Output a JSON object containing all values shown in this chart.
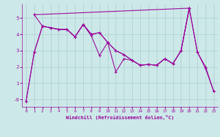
{
  "xlabel": "Windchill (Refroidissement éolien,°C)",
  "background_color": "#cce8e8",
  "line_color": "#990099",
  "grid_color": "#aacccc",
  "xlim": [
    -0.5,
    23.5
  ],
  "ylim": [
    -0.45,
    5.85
  ],
  "yticks": [
    0,
    1,
    2,
    3,
    4,
    5
  ],
  "ytick_labels": [
    "-0",
    "1",
    "2",
    "3",
    "4",
    "5"
  ],
  "xticks": [
    0,
    1,
    2,
    3,
    4,
    5,
    6,
    7,
    8,
    9,
    10,
    11,
    12,
    13,
    14,
    15,
    16,
    17,
    18,
    19,
    20,
    21,
    22,
    23
  ],
  "series1": [
    [
      0,
      -0.1
    ],
    [
      1,
      2.9
    ],
    [
      2,
      4.5
    ],
    [
      3,
      4.4
    ],
    [
      4,
      4.3
    ],
    [
      5,
      4.3
    ],
    [
      6,
      3.85
    ],
    [
      7,
      4.6
    ],
    [
      8,
      3.9
    ],
    [
      9,
      2.7
    ],
    [
      10,
      3.5
    ],
    [
      11,
      1.7
    ],
    [
      12,
      2.5
    ],
    [
      13,
      2.4
    ],
    [
      14,
      2.1
    ],
    [
      15,
      2.15
    ],
    [
      16,
      2.1
    ],
    [
      17,
      2.5
    ],
    [
      18,
      2.2
    ],
    [
      19,
      3.0
    ],
    [
      20,
      5.6
    ],
    [
      21,
      2.9
    ],
    [
      22,
      1.9
    ],
    [
      23,
      0.5
    ]
  ],
  "series2": [
    [
      0,
      -0.1
    ],
    [
      1,
      2.9
    ],
    [
      2,
      4.5
    ],
    [
      3,
      4.4
    ],
    [
      4,
      4.3
    ],
    [
      5,
      4.3
    ],
    [
      6,
      3.85
    ],
    [
      7,
      4.6
    ],
    [
      8,
      4.0
    ],
    [
      9,
      4.1
    ],
    [
      10,
      3.5
    ],
    [
      11,
      3.0
    ],
    [
      12,
      2.75
    ],
    [
      13,
      2.4
    ],
    [
      14,
      2.1
    ],
    [
      15,
      2.15
    ],
    [
      16,
      2.1
    ],
    [
      17,
      2.5
    ],
    [
      18,
      2.2
    ],
    [
      19,
      3.0
    ],
    [
      20,
      5.6
    ]
  ],
  "series3": [
    [
      1,
      5.2
    ],
    [
      2,
      4.5
    ],
    [
      3,
      4.4
    ],
    [
      4,
      4.3
    ],
    [
      5,
      4.3
    ],
    [
      6,
      3.85
    ],
    [
      7,
      4.6
    ],
    [
      8,
      4.0
    ],
    [
      9,
      4.1
    ],
    [
      10,
      3.5
    ],
    [
      11,
      3.0
    ],
    [
      12,
      2.75
    ],
    [
      13,
      2.4
    ],
    [
      14,
      2.1
    ],
    [
      15,
      2.15
    ],
    [
      16,
      2.1
    ],
    [
      17,
      2.5
    ],
    [
      18,
      2.2
    ],
    [
      19,
      3.0
    ],
    [
      20,
      5.6
    ],
    [
      21,
      2.9
    ],
    [
      22,
      2.0
    ],
    [
      23,
      0.5
    ]
  ],
  "series4": [
    [
      1,
      5.2
    ],
    [
      20,
      5.6
    ]
  ]
}
